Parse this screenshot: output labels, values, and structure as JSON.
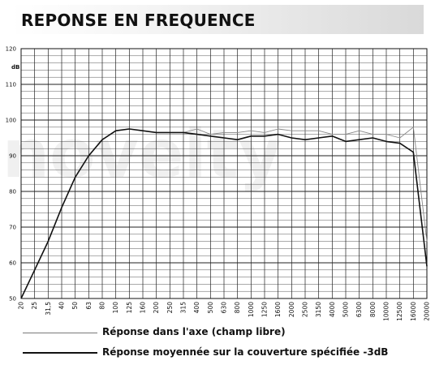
{
  "title": "REPONSE EN FREQUENCE",
  "watermark": "novelty",
  "chart_data": {
    "type": "line",
    "ylabel": "dB",
    "ylim": [
      50,
      120
    ],
    "ytick_step": 2,
    "yticks": [
      "120",
      "110",
      "100",
      "90",
      "80",
      "70",
      "60",
      "50"
    ],
    "x_axis_scale": "logarithmic, 1/3-octave bands",
    "categories": [
      "20",
      "25",
      "31,5",
      "40",
      "50",
      "63",
      "80",
      "100",
      "125",
      "160",
      "200",
      "250",
      "315",
      "400",
      "500",
      "630",
      "800",
      "1000",
      "1250",
      "1600",
      "2000",
      "2500",
      "3150",
      "4000",
      "5000",
      "6300",
      "8000",
      "10000",
      "12500",
      "16000",
      "20000"
    ],
    "grid": true,
    "series": [
      {
        "name": "Réponse dans l'axe (champ libre)",
        "color": "#888888",
        "style": "thin",
        "values": [
          50,
          58,
          66,
          75.5,
          84,
          90,
          94.5,
          97,
          97.5,
          97,
          96.5,
          96.5,
          96.5,
          97.5,
          96,
          96.5,
          96.5,
          97,
          96.5,
          97.5,
          97,
          97,
          97,
          96,
          96,
          97,
          96,
          96,
          95,
          98,
          66
        ]
      },
      {
        "name": "Réponse moyennée sur la couverture spécifiée -3dB",
        "color": "#111111",
        "style": "thick",
        "values": [
          50,
          58,
          66,
          75.5,
          84,
          90,
          94.5,
          97,
          97.5,
          97,
          96.5,
          96.5,
          96.5,
          96,
          95.5,
          95,
          94.5,
          95.5,
          95.5,
          96,
          95,
          94.5,
          95,
          95.5,
          94,
          94.5,
          95,
          94,
          93.5,
          91,
          59
        ]
      }
    ]
  },
  "legend": [
    {
      "label": "Réponse dans l'axe (champ libre)",
      "style": "thin"
    },
    {
      "label": "Réponse moyennée sur la couverture spécifiée -3dB",
      "style": "thick"
    }
  ]
}
